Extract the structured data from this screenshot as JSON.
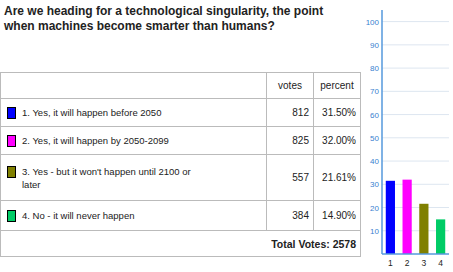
{
  "chart_data": {
    "type": "bar",
    "title": "Are we heading for a technological singularity, the point when machines become smarter than humans?",
    "categories": [
      "1",
      "2",
      "3",
      "4"
    ],
    "values": [
      31.5,
      32.0,
      21.61,
      14.9
    ],
    "value_labels": [
      "31.50%",
      "32.00%",
      "21.61%",
      "14.90%"
    ],
    "colors": [
      "#0000ff",
      "#ff00ff",
      "#808000",
      "#00cc66"
    ],
    "ylim": [
      0,
      105
    ],
    "yticks": [
      10,
      20,
      30,
      40,
      50,
      60,
      70,
      80,
      90,
      100
    ],
    "grid": true,
    "table": {
      "header": [
        "votes",
        "percent"
      ],
      "rows": [
        {
          "label": "1. Yes, it will happen before 2050",
          "votes": 812
        },
        {
          "label": "2. Yes, it will happen by 2050-2099",
          "votes": 825
        },
        {
          "label": "3. Yes - but it won't happen until 2100 or\nlater",
          "votes": 557
        },
        {
          "label": "4. No - it will never happen",
          "votes": 384
        }
      ],
      "total_label": "Total Votes: 2578"
    }
  }
}
